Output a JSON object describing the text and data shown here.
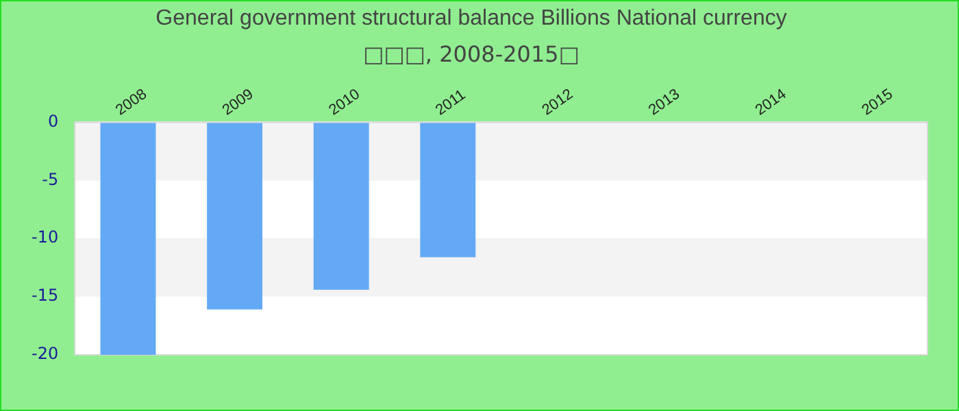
{
  "chart_data": {
    "type": "bar",
    "title": "General government structural balance Billions National currency",
    "subtitle": "□□□, 2008-2015□",
    "categories": [
      "2008",
      "2009",
      "2010",
      "2011",
      "2012",
      "2013",
      "2014",
      "2015"
    ],
    "values": [
      -20,
      -16.1,
      -14.4,
      -11.6,
      null,
      null,
      null,
      null
    ],
    "color": "#63a9f5",
    "ylim": [
      -20,
      0
    ],
    "yticks": [
      -20,
      -15,
      -10,
      -5,
      0
    ],
    "grid": "y"
  }
}
